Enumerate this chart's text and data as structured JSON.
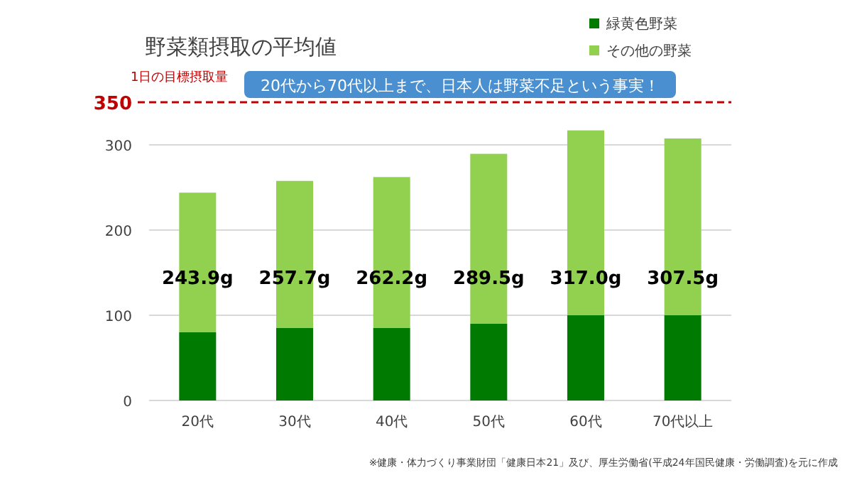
{
  "chart_data": {
    "type": "bar",
    "title": "野菜類摂取の平均値",
    "categories": [
      "20代",
      "30代",
      "40代",
      "50代",
      "60代",
      "70代以上"
    ],
    "stacked": true,
    "series": [
      {
        "name": "緑黄色野菜",
        "color": "#007a00",
        "values": [
          80,
          85,
          85,
          90,
          100,
          100
        ]
      },
      {
        "name": "その他の野菜",
        "color": "#92d050",
        "values": [
          163.9,
          172.7,
          177.2,
          199.5,
          217.0,
          207.5
        ]
      }
    ],
    "totals": [
      "243.9g",
      "257.7g",
      "262.2g",
      "289.5g",
      "317.0g",
      "307.5g"
    ],
    "ylim": [
      0,
      350
    ],
    "yticks": [
      0,
      100,
      200,
      300,
      350
    ],
    "grid": "y",
    "legend": "top right",
    "ref_lines": [
      {
        "axis": "y",
        "value": 350,
        "label": "1日の目標摂取量",
        "color": "#c00000",
        "line_style": "dashed"
      }
    ],
    "annotations": [
      "20代から70代以上まで、日本人は野菜不足という事実！",
      "※健康・体力づくり事業財団「健康日本21」及び、厚生労働省(平成24年国民健康・労働調査)を元に作成"
    ]
  }
}
